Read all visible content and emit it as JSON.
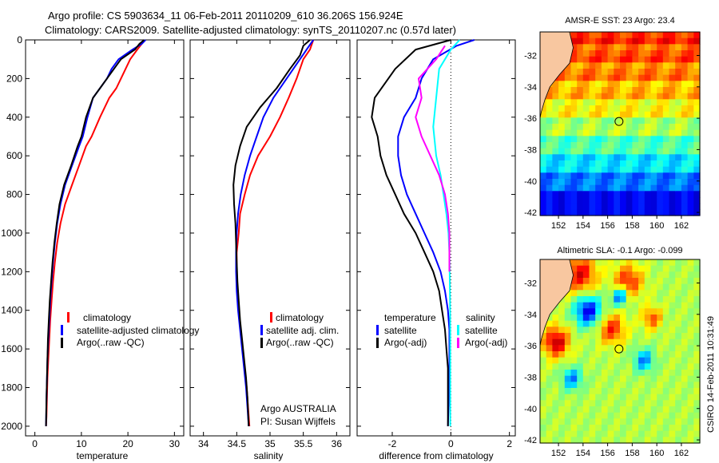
{
  "header": {
    "line1": "Argo profile: CS 5903634_11 06-Feb-2011 20110209_610 36.206S 156.924E",
    "line2": "Climatology: CARS2009. Satellite-adjusted climatology: synTS_20110207.nc (0.57d later)"
  },
  "colors": {
    "climatology": "#ff0000",
    "satellite": "#0000ff",
    "argo": "#000000",
    "salinity_satellite": "#00ffff",
    "salinity_argo": "#ff00ff"
  },
  "side_label": "CSIRO 14-Feb-2011 10:31:49",
  "chart_data": [
    {
      "type": "line",
      "panel": "temperature",
      "xlabel": "temperature",
      "xlim": [
        -2,
        32
      ],
      "ylim": [
        2050,
        0
      ],
      "y_inverted": true,
      "xticks": [
        "0",
        "10",
        "20",
        "30"
      ],
      "yticks": [
        "0",
        "200",
        "400",
        "600",
        "800",
        "1000",
        "1200",
        "1400",
        "1600",
        "1800",
        "2000"
      ],
      "legend": [
        "climatology",
        "satellite-adjusted climatology",
        "Argo(..raw -QC)"
      ],
      "legend_placement": "lower-middle",
      "series": [
        {
          "name": "climatology",
          "color_key": "climatology",
          "x": [
            23.5,
            23.0,
            22.0,
            20.5,
            19.5,
            18.5,
            17.5,
            16.0,
            14.0,
            12.2,
            11.0,
            9.5,
            8.0,
            6.5,
            5.5,
            4.8,
            4.3,
            3.9,
            3.6,
            3.3,
            3.1,
            2.9,
            2.7,
            2.6,
            2.5,
            2.4
          ],
          "y": [
            0,
            20,
            50,
            100,
            150,
            200,
            250,
            300,
            400,
            500,
            550,
            650,
            750,
            850,
            950,
            1050,
            1150,
            1250,
            1350,
            1450,
            1550,
            1650,
            1750,
            1850,
            1950,
            2000
          ]
        },
        {
          "name": "satellite-adjusted climatology",
          "color_key": "satellite",
          "x": [
            23.8,
            23.0,
            21.0,
            18.0,
            16.5,
            15.5,
            14.0,
            12.5,
            11.3,
            10.3,
            9.5,
            8.0,
            6.5,
            5.5,
            4.8,
            4.3,
            3.9,
            3.6,
            3.3,
            3.1,
            2.9,
            2.7,
            2.6,
            2.5,
            2.4
          ],
          "y": [
            0,
            20,
            50,
            100,
            150,
            200,
            250,
            300,
            400,
            500,
            550,
            650,
            750,
            850,
            950,
            1050,
            1150,
            1250,
            1350,
            1450,
            1550,
            1650,
            1750,
            1850,
            2000
          ]
        },
        {
          "name": "Argo(..raw -QC)",
          "color_key": "argo",
          "x": [
            23.5,
            22.5,
            21.5,
            18.5,
            17.0,
            15.5,
            14.0,
            12.5,
            11.0,
            10.0,
            9.2,
            7.8,
            6.3,
            5.3,
            4.7,
            4.2,
            3.8,
            3.5,
            3.2,
            3.0,
            2.8,
            2.7,
            2.6,
            2.5,
            2.4
          ],
          "y": [
            0,
            20,
            50,
            100,
            150,
            200,
            250,
            300,
            400,
            500,
            550,
            650,
            750,
            850,
            950,
            1050,
            1150,
            1250,
            1350,
            1450,
            1550,
            1650,
            1750,
            1850,
            2000
          ]
        }
      ]
    },
    {
      "type": "line",
      "panel": "salinity",
      "xlabel": "salinity",
      "xlim": [
        33.8,
        36.2
      ],
      "ylim": [
        2050,
        0
      ],
      "y_inverted": true,
      "xticks": [
        "34",
        "34.5",
        "35",
        "35.5",
        "36"
      ],
      "legend": [
        "climatology",
        "satellite adj. clim.",
        "Argo(..raw -QC)"
      ],
      "legend_placement": "lower-middle",
      "annotation": [
        "Argo AUSTRALIA",
        "PI: Susan Wijffels"
      ],
      "series": [
        {
          "name": "climatology",
          "color_key": "climatology",
          "x": [
            35.65,
            35.6,
            35.5,
            35.4,
            35.28,
            35.15,
            35.0,
            34.82,
            34.7,
            34.62,
            34.55,
            34.53,
            34.5,
            34.5,
            34.51,
            34.53,
            34.56,
            34.59,
            34.62,
            34.65,
            34.67,
            34.69
          ],
          "y": [
            0,
            50,
            100,
            200,
            300,
            400,
            500,
            600,
            700,
            800,
            900,
            1000,
            1100,
            1200,
            1300,
            1400,
            1500,
            1600,
            1700,
            1800,
            1900,
            2000
          ]
        },
        {
          "name": "satellite adj. clim.",
          "color_key": "satellite",
          "x": [
            35.65,
            35.55,
            35.45,
            35.25,
            35.05,
            34.9,
            34.8,
            34.7,
            34.62,
            34.56,
            34.52,
            34.5,
            34.49,
            34.49,
            34.5,
            34.52,
            34.55,
            34.58,
            34.61,
            34.64,
            34.66,
            34.68
          ],
          "y": [
            0,
            50,
            100,
            200,
            300,
            400,
            500,
            600,
            700,
            800,
            900,
            1000,
            1100,
            1200,
            1300,
            1400,
            1500,
            1600,
            1700,
            1800,
            1900,
            2000
          ]
        },
        {
          "name": "Argo(..raw -QC)",
          "color_key": "argo",
          "x": [
            35.6,
            35.5,
            35.45,
            35.3,
            35.1,
            34.85,
            34.65,
            34.55,
            34.48,
            34.45,
            34.46,
            34.48,
            34.49,
            34.5,
            34.51,
            34.53,
            34.55,
            34.58,
            34.61,
            34.64,
            34.66,
            34.68
          ],
          "y": [
            0,
            30,
            80,
            150,
            250,
            350,
            450,
            550,
            650,
            750,
            850,
            950,
            1050,
            1150,
            1250,
            1350,
            1450,
            1550,
            1650,
            1750,
            1850,
            2000
          ]
        }
      ]
    },
    {
      "type": "line",
      "panel": "difference",
      "xlabel": "difference from climatology",
      "xlim": [
        -3.2,
        2.2
      ],
      "ylim": [
        2050,
        0
      ],
      "y_inverted": true,
      "xticks": [
        "-2",
        "0",
        "2"
      ],
      "legend_temperature": [
        "temperature",
        "satellite",
        "Argo(-adj)"
      ],
      "legend_salinity": [
        "salinity",
        "satellite",
        "Argo(-adj)"
      ],
      "legend_placement": "lower-middle",
      "series": [
        {
          "name": "satellite",
          "group": "temperature",
          "color_key": "satellite",
          "x": [
            0.8,
            0.2,
            -0.6,
            -1.0,
            -1.2,
            -1.6,
            -1.8,
            -1.8,
            -1.7,
            -1.5,
            -1.2,
            -0.9,
            -0.6,
            -0.35,
            -0.2,
            -0.1,
            -0.05,
            -0.05,
            -0.05,
            -0.05,
            -0.08,
            -0.1
          ],
          "y": [
            0,
            30,
            100,
            200,
            300,
            400,
            500,
            600,
            700,
            800,
            900,
            1000,
            1100,
            1200,
            1300,
            1400,
            1500,
            1600,
            1700,
            1800,
            1900,
            2000
          ]
        },
        {
          "name": "Argo(-adj)",
          "group": "temperature",
          "color_key": "argo",
          "x": [
            0.0,
            -1.2,
            -1.9,
            -2.6,
            -2.7,
            -2.5,
            -2.4,
            -2.2,
            -1.9,
            -1.6,
            -1.2,
            -0.9,
            -0.6,
            -0.4,
            -0.3,
            -0.2,
            -0.15,
            -0.1,
            -0.1,
            -0.1,
            -0.1,
            -0.1
          ],
          "y": [
            0,
            50,
            150,
            300,
            400,
            500,
            600,
            700,
            800,
            900,
            1000,
            1100,
            1200,
            1300,
            1400,
            1500,
            1600,
            1700,
            1800,
            1900,
            1950,
            2000
          ]
        },
        {
          "name": "satellite",
          "group": "salinity",
          "color_key": "salinity_satellite",
          "x": [
            0.3,
            0.0,
            -0.4,
            -0.5,
            -0.6,
            -0.5,
            -0.35,
            -0.25,
            -0.15,
            -0.08,
            -0.05,
            -0.03,
            -0.02,
            -0.02,
            -0.02,
            -0.02,
            -0.02
          ],
          "y": [
            0,
            50,
            150,
            300,
            450,
            600,
            700,
            800,
            900,
            1000,
            1100,
            1300,
            1500,
            1600,
            1700,
            1850,
            2000
          ]
        },
        {
          "name": "Argo(-adj)",
          "group": "salinity",
          "color_key": "salinity_argo",
          "x": [
            -0.2,
            -0.5,
            -1.1,
            -1.0,
            -1.2,
            -1.0,
            -0.7,
            -0.4,
            -0.2,
            -0.1,
            -0.05,
            -0.05,
            -0.05
          ],
          "y": [
            30,
            100,
            200,
            300,
            400,
            500,
            600,
            700,
            800,
            900,
            1000,
            1100,
            1200
          ]
        }
      ]
    },
    {
      "type": "heatmap",
      "panel": "sst_map",
      "title": "AMSR-E SST: 23 Argo: 23.4",
      "xlim": [
        150.5,
        163.5
      ],
      "ylim": [
        -42.2,
        -30.5
      ],
      "xticks": [
        "152",
        "154",
        "156",
        "158",
        "160",
        "162"
      ],
      "yticks": [
        "-32",
        "-34",
        "-36",
        "-38",
        "-40",
        "-42"
      ],
      "marker": {
        "lon": 156.924,
        "lat": -36.206
      }
    },
    {
      "type": "heatmap",
      "panel": "sla_map",
      "title": "Altimetric SLA: -0.1 Argo: -0.099",
      "xlim": [
        150.5,
        163.5
      ],
      "ylim": [
        -42.2,
        -30.5
      ],
      "xticks": [
        "152",
        "154",
        "156",
        "158",
        "160",
        "162"
      ],
      "yticks": [
        "-32",
        "-34",
        "-36",
        "-38",
        "-40",
        "-42"
      ],
      "marker": {
        "lon": 156.924,
        "lat": -36.206
      }
    }
  ]
}
